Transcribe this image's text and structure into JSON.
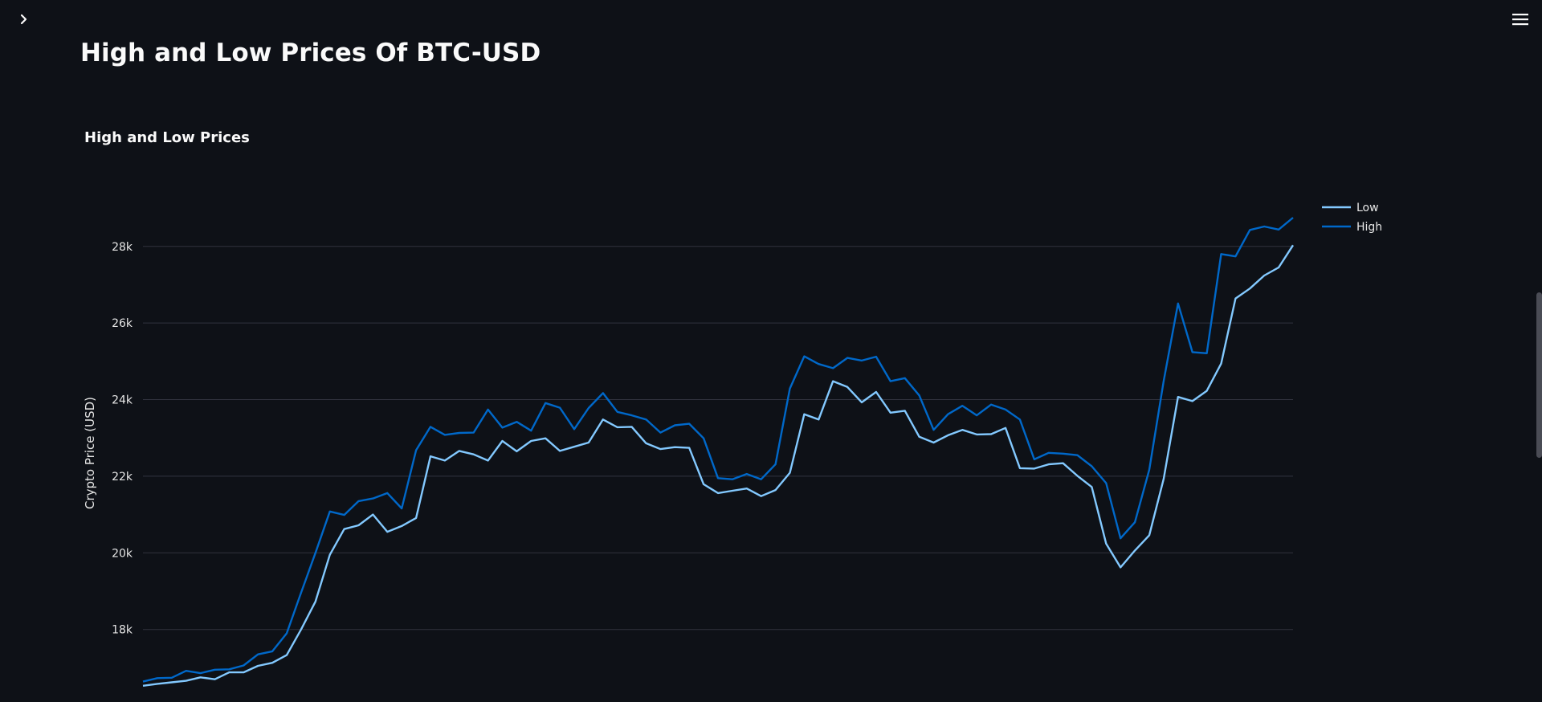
{
  "header": {
    "sidebar_toggle_icon": "chevron-right-icon",
    "menu_icon": "hamburger-menu-icon"
  },
  "page": {
    "title": "High and Low Prices Of BTC-USD"
  },
  "colors": {
    "background": "#0e1117",
    "low_series": "#83c9ff",
    "high_series": "#0068c9",
    "grid": "#31333f"
  },
  "chart_data": {
    "type": "line",
    "title": "High and Low Prices",
    "xlabel": "",
    "ylabel": "Crypto Price (USD)",
    "ylim": [
      16400,
      29400
    ],
    "yticks": [
      18000,
      20000,
      22000,
      24000,
      26000,
      28000
    ],
    "ytick_labels": [
      "18k",
      "20k",
      "22k",
      "24k",
      "26k",
      "28k"
    ],
    "grid": true,
    "legend_position": "top-right",
    "series": [
      {
        "name": "Low",
        "color": "#83c9ff",
        "values": [
          16530,
          16580,
          16620,
          16660,
          16750,
          16700,
          16880,
          16880,
          17050,
          17130,
          17330,
          18000,
          18730,
          19950,
          20620,
          20720,
          21000,
          20550,
          20700,
          20910,
          22520,
          22410,
          22660,
          22570,
          22410,
          22920,
          22650,
          22920,
          22990,
          22660,
          22770,
          22880,
          23480,
          23280,
          23290,
          22860,
          22710,
          22760,
          22740,
          21790,
          21560,
          21620,
          21680,
          21480,
          21640,
          22090,
          23620,
          23480,
          24480,
          24330,
          23930,
          24200,
          23660,
          23710,
          23030,
          22880,
          23070,
          23210,
          23090,
          23100,
          23260,
          22210,
          22200,
          22310,
          22340,
          22010,
          21720,
          20240,
          19620,
          20060,
          20460,
          21930,
          24070,
          23960,
          24230,
          24940,
          26640,
          26900,
          27240,
          27450,
          28030
        ]
      },
      {
        "name": "High",
        "color": "#0068c9",
        "values": [
          16640,
          16730,
          16740,
          16920,
          16860,
          16950,
          16960,
          17060,
          17350,
          17430,
          17900,
          18960,
          20000,
          21080,
          20990,
          21350,
          21420,
          21560,
          21160,
          22680,
          23290,
          23080,
          23130,
          23140,
          23740,
          23270,
          23420,
          23190,
          23910,
          23790,
          23230,
          23780,
          24170,
          23680,
          23590,
          23480,
          23140,
          23330,
          23370,
          22990,
          21950,
          21920,
          22060,
          21920,
          22310,
          24290,
          25130,
          24930,
          24820,
          25090,
          25020,
          25120,
          24480,
          24560,
          24110,
          23210,
          23620,
          23840,
          23590,
          23870,
          23740,
          23480,
          22440,
          22610,
          22590,
          22550,
          22260,
          21820,
          20380,
          20800,
          22170,
          24480,
          26510,
          25240,
          25210,
          27800,
          27740,
          28430,
          28520,
          28440,
          28750
        ]
      }
    ]
  }
}
